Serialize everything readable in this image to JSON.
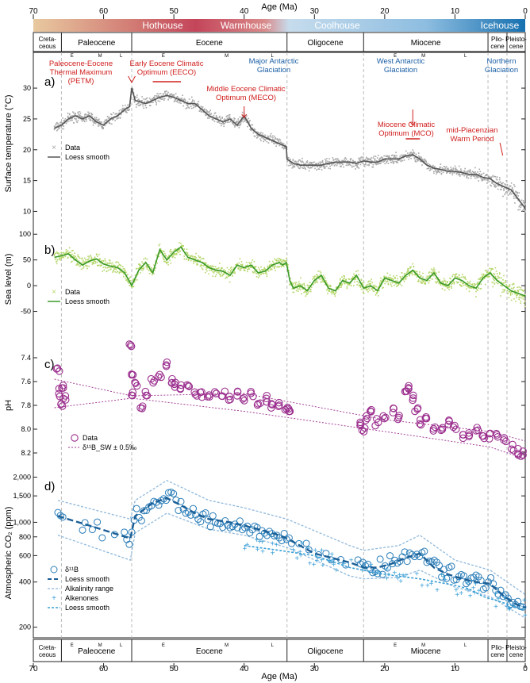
{
  "colors": {
    "temp_data": "#a6a6a6",
    "temp_line": "#555555",
    "sea_data": "#b5d66a",
    "sea_line": "#3a9a2a",
    "ph": "#9b2f8e",
    "co2_boron": "#2a7db8",
    "co2_alk": "#8fb8dc",
    "co2_alkenone": "#3aa0d6",
    "red_label": "#d0201f",
    "blue_label": "#1b5fa5",
    "hothouse": "#c4455a",
    "icehouse": "#1670b0",
    "paleo_bar": "#e8c9a0"
  },
  "chart_data": {
    "type": "line",
    "xlabel": "Age (Ma)",
    "xlim": [
      70,
      0
    ],
    "xticks": [
      70,
      60,
      50,
      40,
      30,
      20,
      10,
      0
    ],
    "climate_states": [
      "Hothouse",
      "Warmhouse",
      "Coolhouse",
      "Icehouse"
    ],
    "boundaries": [
      66,
      56,
      33.9,
      23,
      5.3,
      2.6
    ],
    "epochs": [
      {
        "label_1": "Creta-",
        "label_2": "ceous",
        "start": 70,
        "end": 66
      },
      {
        "label_1": "Paleocene",
        "label_2": "",
        "start": 66,
        "end": 56
      },
      {
        "label_1": "Eocene",
        "label_2": "",
        "start": 56,
        "end": 33.9
      },
      {
        "label_1": "Oligocene",
        "label_2": "",
        "start": 33.9,
        "end": 23
      },
      {
        "label_1": "Miocene",
        "label_2": "",
        "start": 23,
        "end": 5.3
      },
      {
        "label_1": "Plio-",
        "label_2": "cene",
        "start": 5.3,
        "end": 2.6
      },
      {
        "label_1": "Pleisto-",
        "label_2": "cene",
        "start": 2.6,
        "end": 0
      }
    ],
    "subepochs": [
      {
        "label": "E",
        "age": 64.5
      },
      {
        "label": "M",
        "age": 60.5
      },
      {
        "label": "L",
        "age": 57.5
      },
      {
        "label": "E",
        "age": 51.5
      },
      {
        "label": "M",
        "age": 42.5
      },
      {
        "label": "L",
        "age": 36
      },
      {
        "label": "E",
        "age": 18.5
      },
      {
        "label": "M",
        "age": 14.5
      },
      {
        "label": "L",
        "age": 8.5
      }
    ],
    "events": [
      {
        "text": "Paleocene-Eocene Thermal Maximum (PETM)",
        "lines": [
          "Paleocene-Eocene",
          "Thermal Maximum",
          "(PETM)"
        ],
        "age": 56,
        "color": "red"
      },
      {
        "text": "Early Eocene Climatic Optimum (EECO)",
        "lines": [
          "Early Eocene Climatic",
          "Optimum (EECO)"
        ],
        "age": 51,
        "color": "red"
      },
      {
        "text": "Middle Eocene Climatic Optimum (MECO)",
        "lines": [
          "Middle Eocene Climatic",
          "Optimum (MECO)"
        ],
        "age": 40,
        "color": "red"
      },
      {
        "text": "Miocene Climatic Optimum (MCO)",
        "lines": [
          "Miocene Climatic",
          "Optimum (MCO)"
        ],
        "age": 16,
        "color": "red"
      },
      {
        "text": "mid-Piacenzian Warm Period",
        "lines": [
          "mid-Piacenzian",
          "Warm Period"
        ],
        "age": 3.2,
        "color": "red"
      },
      {
        "text": "Major Antarctic Glaciation",
        "lines": [
          "Major Antarctic",
          "Glaciation"
        ],
        "age": 33.9,
        "color": "blue"
      },
      {
        "text": "West Antarctic Glaciation",
        "lines": [
          "West Antarctic",
          "Glaciation"
        ],
        "age": 14,
        "color": "blue"
      },
      {
        "text": "Northern Glaciation",
        "lines": [
          "Northern",
          "Glaciation"
        ],
        "age": 2.7,
        "color": "blue"
      }
    ],
    "panels": [
      {
        "tag": "a)",
        "ylabel": "Surface temperature (°C)",
        "ylim": [
          8,
          34
        ],
        "yticks": [
          10,
          15,
          20,
          25,
          30
        ],
        "legend": [
          "Data",
          "Loess smooth"
        ],
        "series": [
          {
            "name": "Loess smooth",
            "x": [
              67,
              66,
              65,
              64,
              63,
              62,
              61,
              60,
              59,
              58,
              57,
              56.3,
              56,
              55.5,
              54,
              53,
              52,
              51,
              50,
              49,
              48,
              47,
              46,
              45,
              44,
              43,
              42,
              41,
              40,
              39,
              38,
              37,
              36,
              35,
              34,
              33.9,
              33,
              32,
              31,
              30,
              29,
              28,
              27,
              26,
              25,
              24,
              23,
              22,
              21,
              20,
              19,
              18,
              17,
              16,
              15,
              14,
              13,
              12,
              11,
              10,
              9,
              8,
              7,
              6,
              5,
              4,
              3,
              2,
              1,
              0
            ],
            "y": [
              23.5,
              24,
              25,
              25.5,
              25,
              25.5,
              24.5,
              24,
              25,
              25.5,
              26.5,
              27,
              30,
              28,
              27.5,
              28,
              28.5,
              28.8,
              28.5,
              28,
              27.5,
              27.5,
              26.5,
              25.5,
              25,
              24.5,
              25,
              24,
              25.5,
              23.5,
              22.5,
              22,
              21.5,
              21,
              20.5,
              18.5,
              17.8,
              17.5,
              17.5,
              17.5,
              17.5,
              17.8,
              18,
              18,
              18,
              17.8,
              18.2,
              18,
              18,
              18.5,
              18.5,
              18.5,
              19,
              19.2,
              18.5,
              17.5,
              17,
              16.8,
              16.5,
              16.5,
              16.3,
              16,
              16,
              15.5,
              15.3,
              14.5,
              14,
              13.5,
              12,
              10.5
            ]
          }
        ]
      },
      {
        "tag": "b)",
        "ylabel": "Sea level (m)",
        "ylim": [
          -80,
          105
        ],
        "yticks": [
          -50,
          0,
          50,
          100
        ],
        "legend": [
          "Data",
          "Loess smooth"
        ],
        "series": [
          {
            "name": "Loess smooth",
            "x": [
              67,
              66,
              65,
              64,
              63,
              62,
              61,
              60,
              59,
              58,
              57,
              56,
              55,
              54,
              53,
              52,
              51,
              50,
              49,
              48,
              47,
              46,
              45,
              44,
              43,
              42,
              41,
              40,
              39,
              38,
              37,
              36,
              35,
              34.5,
              34,
              33.5,
              33,
              32,
              31,
              30,
              29,
              28,
              27,
              26,
              25,
              24,
              23,
              22,
              21,
              20,
              19,
              18,
              17,
              16,
              15,
              14,
              13,
              12,
              11,
              10,
              9,
              8,
              7,
              6,
              5,
              4,
              3,
              2,
              1,
              0
            ],
            "y": [
              55,
              58,
              62,
              50,
              40,
              48,
              52,
              42,
              38,
              35,
              25,
              0,
              30,
              45,
              25,
              70,
              50,
              65,
              75,
              55,
              50,
              45,
              35,
              30,
              28,
              20,
              40,
              35,
              40,
              25,
              28,
              40,
              45,
              40,
              45,
              10,
              -5,
              0,
              -10,
              10,
              20,
              -5,
              -10,
              10,
              5,
              20,
              -5,
              0,
              -10,
              15,
              10,
              5,
              20,
              30,
              15,
              10,
              25,
              5,
              0,
              15,
              10,
              0,
              -5,
              15,
              25,
              10,
              0,
              -10,
              -15,
              -20
            ]
          }
        ]
      },
      {
        "tag": "c)",
        "ylabel": "pH",
        "ylim": [
          8.3,
          7.3
        ],
        "yticks": [
          7.4,
          7.6,
          7.8,
          8.0,
          8.2
        ],
        "legend": [
          "Data",
          "δ¹¹B_SW ± 0.5‰"
        ],
        "series": [
          {
            "name": "Data",
            "x": [
              66.5,
              66.3,
              66,
              65.8,
              65.5,
              56.2,
              56,
              55.8,
              55.5,
              54.5,
              54,
              53,
              52,
              51,
              50.5,
              50,
              49,
              48,
              47,
              46,
              45,
              44,
              43,
              42,
              41,
              40,
              39,
              38,
              37,
              36,
              35,
              34,
              33.5,
              23.5,
              23,
              22.5,
              22,
              21,
              20,
              19,
              18,
              17,
              16.5,
              16,
              15.5,
              15,
              14,
              13,
              12,
              11,
              10,
              9,
              8,
              7,
              6,
              5,
              4,
              3,
              2,
              1,
              0.5
            ],
            "y": [
              7.5,
              7.7,
              7.8,
              7.65,
              7.75,
              7.3,
              7.55,
              7.7,
              7.6,
              7.8,
              7.7,
              7.6,
              7.55,
              7.45,
              7.6,
              7.62,
              7.65,
              7.65,
              7.7,
              7.7,
              7.72,
              7.7,
              7.72,
              7.75,
              7.7,
              7.75,
              7.72,
              7.78,
              7.75,
              7.78,
              7.8,
              7.82,
              7.85,
              7.95,
              8.0,
              7.9,
              7.85,
              7.95,
              7.9,
              7.85,
              7.9,
              7.7,
              7.65,
              7.75,
              7.85,
              7.95,
              7.9,
              8.0,
              8.0,
              7.95,
              8.0,
              8.05,
              8.05,
              8.0,
              8.05,
              8.05,
              8.05,
              8.1,
              8.15,
              8.2,
              8.2
            ]
          }
        ]
      },
      {
        "tag": "d)",
        "ylabel": "Atmospheric CO₂ (ppm)",
        "ylim": [
          170,
          2300
        ],
        "yticks": [
          200,
          400,
          600,
          800,
          1000,
          1500,
          2000
        ],
        "scale": "log",
        "legend": [
          "δ¹¹B",
          "Loess smooth",
          "Alkalinity range",
          "Alkenones",
          "Loess smooth"
        ],
        "series": [
          {
            "name": "Loess smooth",
            "x": [
              66.5,
              62,
              56.2,
              55.5,
              53,
              51,
              49,
              47,
              45,
              42,
              40,
              38,
              35,
              33.9,
              30,
              25,
              23,
              21,
              19,
              17,
              15,
              13,
              11,
              9,
              7,
              5,
              3,
              1,
              0
            ],
            "y": [
              1100,
              950,
              780,
              1100,
              1350,
              1450,
              1300,
              1150,
              1050,
              1000,
              950,
              900,
              820,
              780,
              620,
              540,
              500,
              500,
              530,
              580,
              620,
              500,
              450,
              420,
              400,
              390,
              320,
              280,
              270
            ]
          },
          {
            "name": "Alkalinity range upper",
            "x": [
              66.5,
              56.2,
              55.5,
              51,
              45,
              40,
              33.9,
              25,
              23,
              18,
              15,
              10,
              5,
              0
            ],
            "y": [
              1400,
              1050,
              1400,
              1900,
              1400,
              1250,
              1050,
              700,
              650,
              700,
              820,
              560,
              480,
              330
            ]
          },
          {
            "name": "Alkalinity range lower",
            "x": [
              66.5,
              56.2,
              55.5,
              51,
              45,
              40,
              33.9,
              25,
              23,
              18,
              15,
              10,
              5,
              0
            ],
            "y": [
              820,
              560,
              850,
              1150,
              900,
              820,
              680,
              440,
              420,
              430,
              480,
              370,
              320,
              230
            ]
          },
          {
            "name": "Alkenones loess",
            "x": [
              40,
              35,
              30,
              25,
              20,
              15,
              10,
              8,
              6,
              4,
              2,
              0
            ],
            "y": [
              700,
              650,
              600,
              500,
              450,
              420,
              380,
              360,
              320,
              300,
              280,
              260
            ]
          }
        ]
      }
    ]
  }
}
